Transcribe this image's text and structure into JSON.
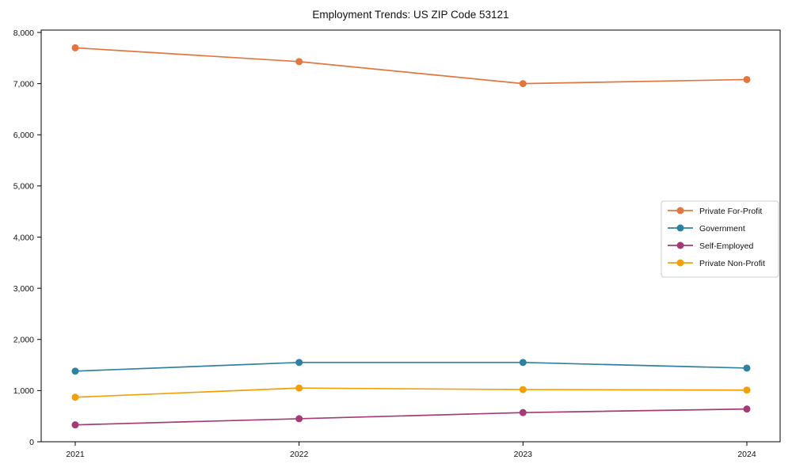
{
  "title": "Employment Trends: US ZIP Code 53121",
  "chart_data": {
    "type": "line",
    "title": "Employment Trends: US ZIP Code 53121",
    "xlabel": "",
    "ylabel": "",
    "x": [
      "2021",
      "2022",
      "2023",
      "2024"
    ],
    "series": [
      {
        "name": "Private For-Profit",
        "color": "#E2763F",
        "values": [
          7700,
          7430,
          7000,
          7080
        ]
      },
      {
        "name": "Government",
        "color": "#2E81A0",
        "values": [
          1380,
          1550,
          1550,
          1440
        ]
      },
      {
        "name": "Self-Employed",
        "color": "#A33C74",
        "values": [
          330,
          450,
          570,
          640
        ]
      },
      {
        "name": "Private Non-Profit",
        "color": "#F2A007",
        "values": [
          870,
          1050,
          1020,
          1010
        ]
      }
    ],
    "ylim": [
      0,
      8000
    ],
    "ytick_step": 1000,
    "ytick_labels": [
      "0",
      "1,000",
      "2,000",
      "3,000",
      "4,000",
      "5,000",
      "6,000",
      "7,000",
      "8,000"
    ],
    "grid": false,
    "legend_position": "right-middle",
    "spine_color": "#000000",
    "tick_text_color": "#111111",
    "legend_border_color": "#cccccc"
  }
}
